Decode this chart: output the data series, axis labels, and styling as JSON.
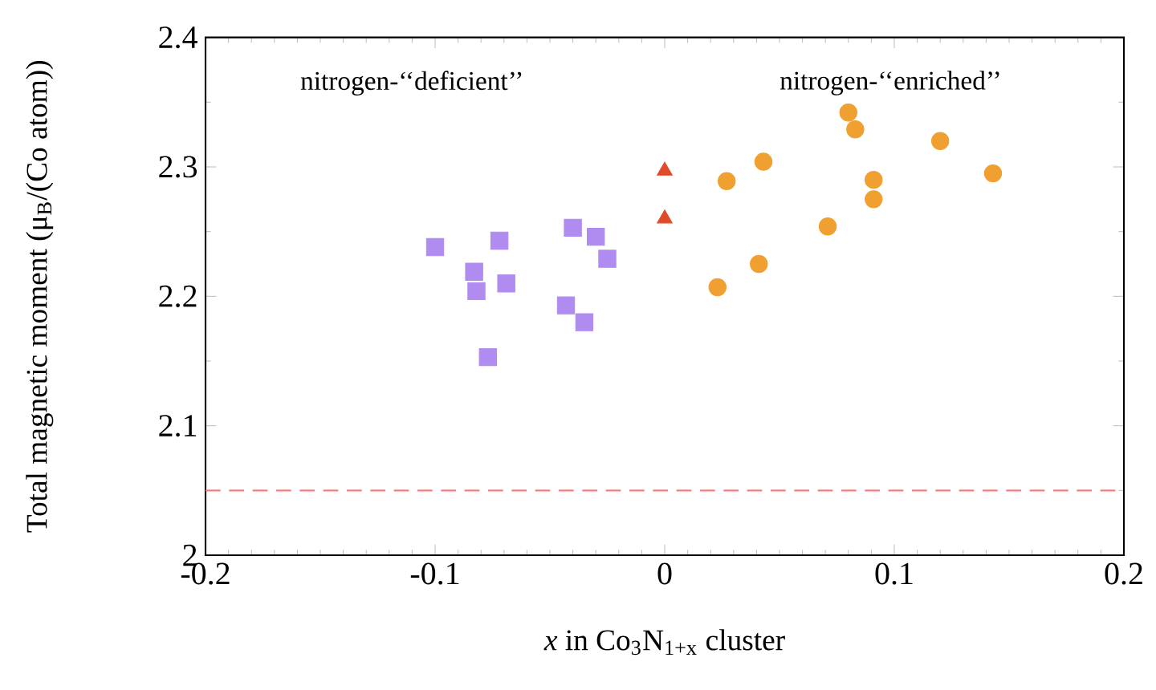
{
  "chart_data": {
    "type": "scatter",
    "xlabel": "*x* in Co$_{3}$N$_{1+x}$ cluster",
    "ylabel": "Total magnetic moment (μ$_{B}$/(Co atom))",
    "xlim": [
      -0.2,
      0.2
    ],
    "xticks": [
      -0.2,
      -0.1,
      0,
      0.1,
      0.2
    ],
    "ylim": [
      2,
      2.4
    ],
    "yticks": [
      2,
      2.1,
      2.2,
      2.3,
      2.4
    ],
    "grid": false,
    "series": [
      {
        "color": "#b08cf0",
        "marker": "square",
        "x": [
          -0.1,
          -0.072,
          -0.04,
          -0.03,
          -0.025,
          -0.083,
          -0.082,
          -0.069,
          -0.043,
          -0.035,
          -0.077
        ],
        "values": [
          2.238,
          2.243,
          2.253,
          2.246,
          2.229,
          2.219,
          2.204,
          2.21,
          2.193,
          2.18,
          2.153
        ]
      },
      {
        "color": "#e04a28",
        "marker": "triangle",
        "x": [
          0,
          0
        ],
        "values": [
          2.297,
          2.26
        ]
      },
      {
        "color": "#f0a030",
        "marker": "circle",
        "x": [
          0.08,
          0.083,
          0.12,
          0.043,
          0.027,
          0.091,
          0.143,
          0.091,
          0.071,
          0.041,
          0.023
        ],
        "values": [
          2.342,
          2.329,
          2.32,
          2.304,
          2.289,
          2.29,
          2.295,
          2.275,
          2.254,
          2.225,
          2.207
        ]
      }
    ],
    "ref_lines": [
      {
        "axis": "y",
        "value": 2.05,
        "color": "#f08080",
        "line_style": "dashed"
      }
    ],
    "annotations": [
      "nitrogen-‘‘deficient’’",
      "nitrogen-‘‘enriched’’"
    ]
  }
}
